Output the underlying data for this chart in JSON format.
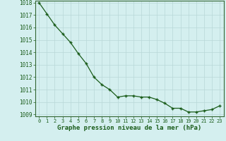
{
  "x": [
    0,
    1,
    2,
    3,
    4,
    5,
    6,
    7,
    8,
    9,
    10,
    11,
    12,
    13,
    14,
    15,
    16,
    17,
    18,
    19,
    20,
    21,
    22,
    23
  ],
  "y": [
    1018.0,
    1017.1,
    1016.2,
    1015.5,
    1014.8,
    1013.9,
    1013.1,
    1012.0,
    1011.4,
    1011.0,
    1010.4,
    1010.5,
    1010.5,
    1010.4,
    1010.4,
    1010.2,
    1009.9,
    1009.5,
    1009.5,
    1009.2,
    1009.2,
    1009.3,
    1009.4,
    1009.7
  ],
  "xlabel": "Graphe pression niveau de la mer (hPa)",
  "ylim_min": 1009,
  "ylim_max": 1018,
  "bg_color": "#d4efef",
  "line_color": "#1a5c1a",
  "marker_color": "#1a5c1a",
  "grid_color": "#b8d8d8",
  "tick_label_color": "#1a5c1a",
  "xlabel_color": "#1a5c1a",
  "spine_color": "#336633"
}
